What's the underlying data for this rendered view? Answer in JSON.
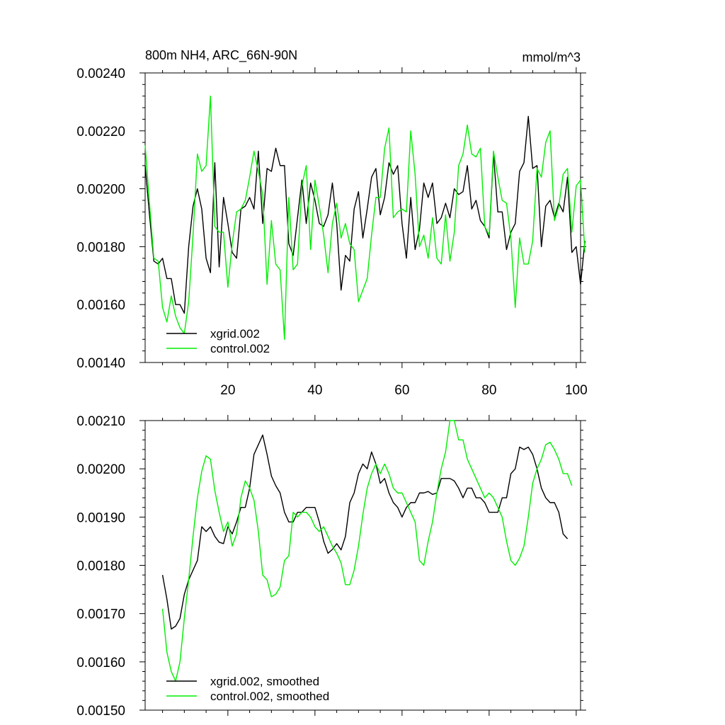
{
  "chart_data": [
    {
      "type": "line",
      "panel": "top",
      "title": "800m NH4, ARC_66N-90N",
      "units": "mmol/m^3",
      "xlim": [
        1,
        101
      ],
      "ylim": [
        0.0014,
        0.0024
      ],
      "xticks": [
        20,
        40,
        60,
        80,
        100
      ],
      "xtick_labels": [
        "20",
        "40",
        "60",
        "80",
        "100"
      ],
      "yticks": [
        0.0014,
        0.0016,
        0.0018,
        0.002,
        0.0022,
        0.0024
      ],
      "ytick_labels": [
        "0.00140",
        "0.00160",
        "0.00180",
        "0.00200",
        "0.00220",
        "0.00240"
      ],
      "legend_position": "bottom-left",
      "series": [
        {
          "name": "xgrid.002",
          "color": "#000000",
          "x_start": 1,
          "values": [
            0.00208,
            0.00191,
            0.00175,
            0.00174,
            0.00176,
            0.00169,
            0.00169,
            0.0016,
            0.0016,
            0.00157,
            0.0018,
            0.00194,
            0.002,
            0.00193,
            0.00176,
            0.00171,
            0.00209,
            0.00173,
            0.00197,
            0.00188,
            0.00178,
            0.00176,
            0.00193,
            0.00194,
            0.00197,
            0.00193,
            0.00213,
            0.00188,
            0.00207,
            0.00206,
            0.00214,
            0.00208,
            0.00208,
            0.00181,
            0.00177,
            0.0019,
            0.00203,
            0.00188,
            0.00202,
            0.00196,
            0.00188,
            0.00187,
            0.00191,
            0.00202,
            0.00188,
            0.00165,
            0.00177,
            0.00175,
            0.00193,
            0.00199,
            0.00183,
            0.00193,
            0.00204,
            0.00207,
            0.00191,
            0.00197,
            0.00209,
            0.00205,
            0.00208,
            0.00188,
            0.00176,
            0.00197,
            0.00179,
            0.00186,
            0.00202,
            0.00197,
            0.00202,
            0.00188,
            0.0019,
            0.00195,
            0.0019,
            0.002,
            0.00198,
            0.00199,
            0.00208,
            0.00193,
            0.00196,
            0.00189,
            0.00187,
            0.00183,
            0.00212,
            0.00192,
            0.00192,
            0.00179,
            0.00185,
            0.00188,
            0.00206,
            0.00209,
            0.00225,
            0.00207,
            0.00208,
            0.0018,
            0.00194,
            0.00196,
            0.0019,
            0.00195,
            0.00192,
            0.00204,
            0.00178,
            0.0018,
            0.00167,
            0.00182
          ]
        },
        {
          "name": "control.002",
          "color": "#00ee00",
          "x_start": 1,
          "values": [
            0.00215,
            0.00195,
            0.00176,
            0.00175,
            0.00159,
            0.00154,
            0.00163,
            0.00156,
            0.00152,
            0.0015,
            0.00161,
            0.00184,
            0.00212,
            0.00206,
            0.00208,
            0.00232,
            0.00187,
            0.00185,
            0.00185,
            0.00166,
            0.00181,
            0.00192,
            0.00193,
            0.00196,
            0.00204,
            0.00213,
            0.00206,
            0.00198,
            0.00167,
            0.00189,
            0.00174,
            0.00172,
            0.00148,
            0.00197,
            0.00172,
            0.00174,
            0.00201,
            0.00208,
            0.00179,
            0.00203,
            0.00194,
            0.00184,
            0.00171,
            0.00188,
            0.00195,
            0.00183,
            0.00188,
            0.00181,
            0.00179,
            0.00161,
            0.00165,
            0.00169,
            0.00184,
            0.00197,
            0.00197,
            0.00214,
            0.00221,
            0.0019,
            0.00192,
            0.00193,
            0.00192,
            0.0022,
            0.00205,
            0.0018,
            0.00184,
            0.00176,
            0.0019,
            0.00176,
            0.00174,
            0.00191,
            0.00175,
            0.00185,
            0.00208,
            0.00212,
            0.00222,
            0.00212,
            0.00211,
            0.00214,
            0.00187,
            0.00184,
            0.00213,
            0.00204,
            0.00196,
            0.00195,
            0.00183,
            0.00159,
            0.00183,
            0.00174,
            0.00174,
            0.00182,
            0.00207,
            0.00204,
            0.00216,
            0.0022,
            0.00189,
            0.00194,
            0.00205,
            0.00207,
            0.00185,
            0.00201,
            0.00203,
            0.00178
          ]
        }
      ]
    },
    {
      "type": "line",
      "panel": "bottom",
      "xlim": [
        1,
        101
      ],
      "ylim": [
        0.0015,
        0.0021
      ],
      "xticks": [
        20,
        40,
        60,
        80,
        100
      ],
      "yticks": [
        0.0015,
        0.0016,
        0.0017,
        0.0018,
        0.0019,
        0.002,
        0.0021
      ],
      "ytick_labels": [
        "0.00150",
        "0.00160",
        "0.00170",
        "0.00180",
        "0.00190",
        "0.00200",
        "0.00210"
      ],
      "legend_position": "bottom-left",
      "series": [
        {
          "name": "xgrid.002, smoothed",
          "color": "#000000",
          "x_start": 5,
          "values": [
            0.00178,
            0.00173,
            0.001668,
            0.001674,
            0.00169,
            0.00174,
            0.00177,
            0.00179,
            0.00181,
            0.00188,
            0.00187,
            0.00188,
            0.00186,
            0.001848,
            0.001845,
            0.00188,
            0.001865,
            0.00189,
            0.00192,
            0.00192,
            0.00196,
            0.00203,
            0.00205,
            0.00207,
            0.00203,
            0.001985,
            0.001965,
            0.00195,
            0.00191,
            0.00189,
            0.00189,
            0.00191,
            0.00191,
            0.00192,
            0.00192,
            0.00192,
            0.00189,
            0.00185,
            0.001825,
            0.001833,
            0.001845,
            0.001832,
            0.00186,
            0.00193,
            0.00195,
            0.00199,
            0.00201,
            0.002,
            0.002035,
            0.00201,
            0.00197,
            0.00198,
            0.00195,
            0.00193,
            0.00192,
            0.0019,
            0.00192,
            0.00193,
            0.00193,
            0.00195,
            0.00195,
            0.001953,
            0.001947,
            0.00195,
            0.00198,
            0.00198,
            0.00198,
            0.001975,
            0.00196,
            0.00194,
            0.00196,
            0.00196,
            0.00194,
            0.00194,
            0.00193,
            0.00191,
            0.00191,
            0.00191,
            0.00194,
            0.00194,
            0.00199,
            0.002,
            0.002045,
            0.00204,
            0.002045,
            0.00203,
            0.002,
            0.00196,
            0.00194,
            0.00193,
            0.00193,
            0.00191,
            0.001865,
            0.001855
          ]
        },
        {
          "name": "control.002, smoothed",
          "color": "#00ee00",
          "x_start": 5,
          "values": [
            0.00171,
            0.00162,
            0.00158,
            0.00156,
            0.0016,
            0.00169,
            0.00177,
            0.00186,
            0.00194,
            0.001995,
            0.002027,
            0.00202,
            0.001955,
            0.00191,
            0.00187,
            0.00189,
            0.00184,
            0.001865,
            0.00194,
            0.001975,
            0.00196,
            0.001935,
            0.00187,
            0.00178,
            0.00177,
            0.001735,
            0.00174,
            0.001755,
            0.00181,
            0.00182,
            0.00191,
            0.0019,
            0.00191,
            0.00191,
            0.0019,
            0.00188,
            0.00187,
            0.00188,
            0.00186,
            0.00184,
            0.001825,
            0.001805,
            0.00176,
            0.00176,
            0.00179,
            0.00184,
            0.001905,
            0.00196,
            0.00199,
            0.00201,
            0.00199,
            0.00201,
            0.00199,
            0.00196,
            0.00195,
            0.00195,
            0.00193,
            0.00191,
            0.00189,
            0.00181,
            0.0018,
            0.00185,
            0.00189,
            0.00195,
            0.002,
            0.002035,
            0.0021,
            0.0021,
            0.00206,
            0.00206,
            0.00202,
            0.002,
            0.00198,
            0.00196,
            0.00194,
            0.00195,
            0.00194,
            0.00192,
            0.0019,
            0.00185,
            0.00181,
            0.0018,
            0.001815,
            0.00184,
            0.0019,
            0.00197,
            0.002,
            0.00202,
            0.00205,
            0.002055,
            0.00204,
            0.00202,
            0.00199,
            0.00199,
            0.001965
          ]
        }
      ]
    }
  ]
}
